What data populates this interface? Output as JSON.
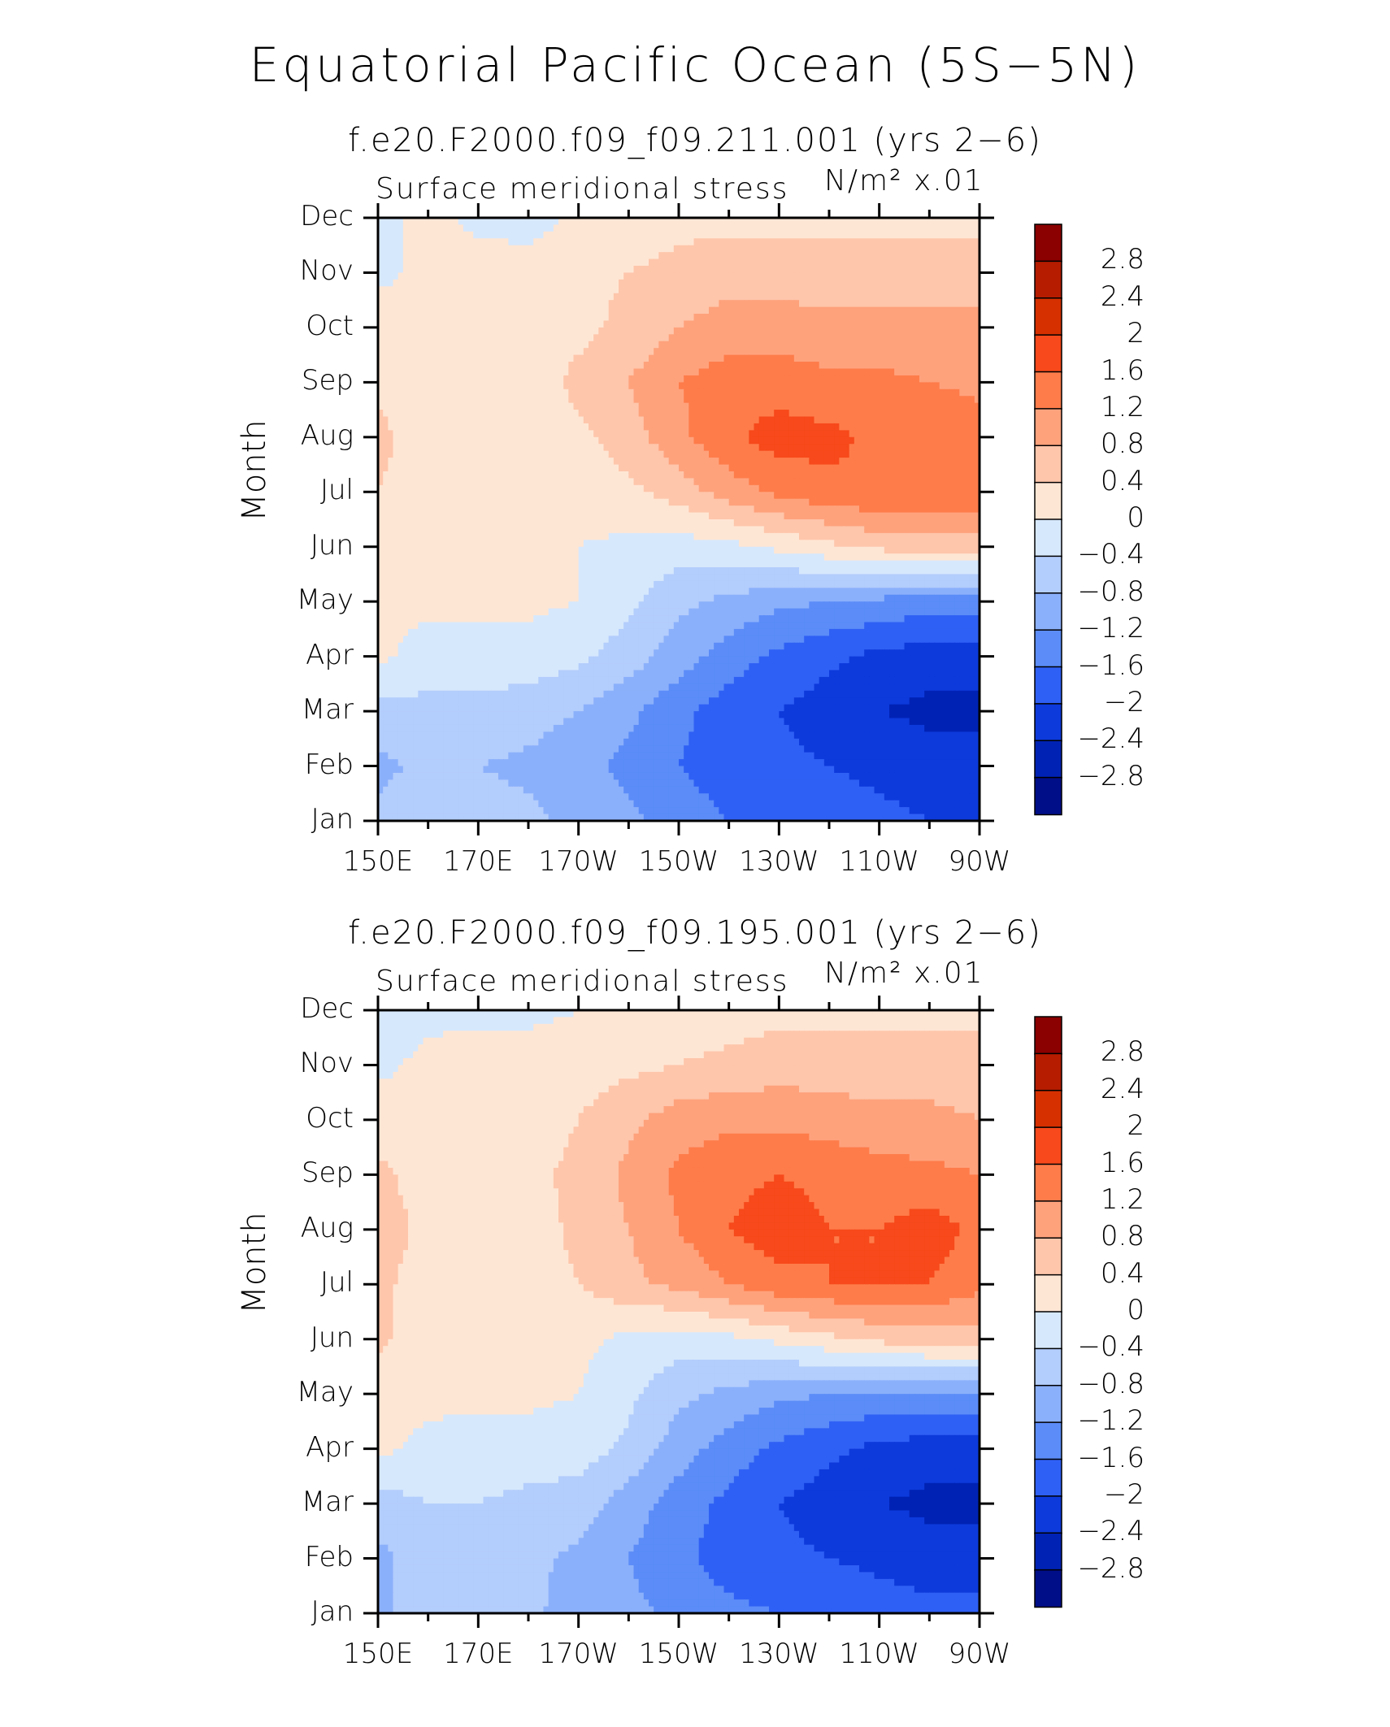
{
  "chart_data": {
    "type": "heatmap",
    "title": "Equatorial Pacific Ocean (5S−5N)",
    "panels": [
      {
        "case": "f.e20.F2000.f09_f09.211.001 (yrs 2−6)",
        "variable": "Surface meridional stress",
        "units": "N/m² x.01",
        "ylabel": "Month",
        "months": [
          "Jan",
          "Feb",
          "Mar",
          "Apr",
          "May",
          "Jun",
          "Jul",
          "Aug",
          "Sep",
          "Oct",
          "Nov",
          "Dec"
        ],
        "lon_ticks": [
          "150E",
          "170E",
          "170W",
          "150W",
          "130W",
          "110W",
          "90W"
        ],
        "lon_values": [
          150,
          170,
          190,
          210,
          230,
          250,
          270
        ],
        "grid_lon": [
          150,
          160,
          170,
          180,
          190,
          200,
          210,
          220,
          230,
          240,
          250,
          260,
          270
        ],
        "grid": [
          [
            -0.7,
            -0.6,
            -0.6,
            -0.7,
            -0.9,
            -1.1,
            -1.4,
            -1.6,
            -1.7,
            -1.8,
            -1.9,
            -2.0,
            -2.0
          ],
          [
            -0.9,
            -0.7,
            -0.8,
            -0.9,
            -1.1,
            -1.3,
            -1.6,
            -1.8,
            -1.9,
            -2.0,
            -2.1,
            -2.2,
            -2.2
          ],
          [
            -0.6,
            -0.5,
            -0.5,
            -0.6,
            -0.8,
            -1.1,
            -1.5,
            -1.8,
            -2.0,
            -2.2,
            -2.4,
            -2.5,
            -2.5
          ],
          [
            0.1,
            -0.2,
            -0.2,
            -0.2,
            -0.3,
            -0.6,
            -1.0,
            -1.4,
            -1.7,
            -1.9,
            -2.1,
            -2.2,
            -2.2
          ],
          [
            0.1,
            0.1,
            0.1,
            0.1,
            0.0,
            -0.3,
            -0.7,
            -0.9,
            -1.1,
            -1.2,
            -1.3,
            -1.4,
            -1.4
          ],
          [
            0.1,
            0.1,
            0.1,
            0.1,
            0.0,
            -0.1,
            -0.2,
            -0.1,
            0.1,
            0.3,
            0.5,
            0.6,
            0.6
          ],
          [
            0.4,
            0.2,
            0.2,
            0.2,
            0.2,
            0.3,
            0.6,
            1.0,
            1.3,
            1.5,
            1.6,
            1.6,
            1.5
          ],
          [
            0.5,
            0.2,
            0.2,
            0.2,
            0.3,
            0.6,
            1.1,
            1.5,
            1.8,
            1.7,
            1.5,
            1.5,
            1.4
          ],
          [
            0.3,
            0.2,
            0.2,
            0.2,
            0.5,
            0.8,
            1.2,
            1.4,
            1.4,
            1.3,
            1.3,
            1.2,
            1.1
          ],
          [
            0.2,
            0.2,
            0.2,
            0.2,
            0.3,
            0.5,
            0.8,
            1.0,
            1.0,
            0.9,
            0.9,
            0.9,
            0.9
          ],
          [
            -0.1,
            0.1,
            0.2,
            0.2,
            0.3,
            0.4,
            0.5,
            0.6,
            0.6,
            0.6,
            0.6,
            0.6,
            0.6
          ],
          [
            -0.1,
            0.1,
            -0.1,
            -0.2,
            0.1,
            0.2,
            0.3,
            0.3,
            0.3,
            0.3,
            0.3,
            0.3,
            0.3
          ]
        ]
      },
      {
        "case": "f.e20.F2000.f09_f09.195.001 (yrs 2−6)",
        "variable": "Surface meridional stress",
        "units": "N/m² x.01",
        "ylabel": "Month",
        "months": [
          "Jan",
          "Feb",
          "Mar",
          "Apr",
          "May",
          "Jun",
          "Jul",
          "Aug",
          "Sep",
          "Oct",
          "Nov",
          "Dec"
        ],
        "lon_ticks": [
          "150E",
          "170E",
          "170W",
          "150W",
          "130W",
          "110W",
          "90W"
        ],
        "lon_values": [
          150,
          170,
          190,
          210,
          230,
          250,
          270
        ],
        "grid_lon": [
          150,
          160,
          170,
          180,
          190,
          200,
          210,
          220,
          230,
          240,
          250,
          260,
          270
        ],
        "grid": [
          [
            -0.9,
            -0.6,
            -0.6,
            -0.7,
            -1.0,
            -1.1,
            -1.3,
            -1.5,
            -1.6,
            -1.7,
            -1.8,
            -1.9,
            -1.9
          ],
          [
            -0.9,
            -0.6,
            -0.6,
            -0.7,
            -0.9,
            -1.2,
            -1.5,
            -1.8,
            -1.9,
            -2.0,
            -2.1,
            -2.2,
            -2.2
          ],
          [
            -0.6,
            -0.4,
            -0.4,
            -0.5,
            -0.6,
            -1.0,
            -1.4,
            -1.7,
            -2.0,
            -2.2,
            -2.4,
            -2.5,
            -2.5
          ],
          [
            0.1,
            -0.1,
            -0.2,
            -0.2,
            -0.2,
            -0.5,
            -1.0,
            -1.4,
            -1.7,
            -1.9,
            -2.1,
            -2.2,
            -2.2
          ],
          [
            0.1,
            0.1,
            0.1,
            0.1,
            0.0,
            -0.3,
            -0.7,
            -0.9,
            -1.1,
            -1.2,
            -1.3,
            -1.3,
            -1.2
          ],
          [
            0.5,
            0.1,
            0.1,
            0.1,
            0.1,
            -0.1,
            -0.2,
            -0.1,
            0.1,
            0.3,
            0.5,
            0.6,
            0.6
          ],
          [
            0.5,
            0.2,
            0.2,
            0.2,
            0.4,
            0.7,
            0.9,
            1.2,
            1.5,
            1.6,
            1.6,
            1.6,
            1.3
          ],
          [
            0.6,
            0.3,
            0.2,
            0.2,
            0.5,
            0.8,
            1.2,
            1.6,
            1.8,
            1.6,
            1.6,
            1.8,
            1.5
          ],
          [
            0.5,
            0.2,
            0.2,
            0.3,
            0.5,
            0.9,
            1.3,
            1.5,
            1.6,
            1.5,
            1.4,
            1.3,
            1.2
          ],
          [
            0.2,
            0.2,
            0.2,
            0.2,
            0.4,
            0.7,
            1.0,
            1.1,
            1.1,
            1.0,
            0.9,
            0.9,
            0.8
          ],
          [
            -0.1,
            0.1,
            0.2,
            0.2,
            0.2,
            0.3,
            0.4,
            0.5,
            0.6,
            0.6,
            0.6,
            0.6,
            0.6
          ],
          [
            -0.2,
            -0.1,
            -0.1,
            -0.1,
            0.0,
            0.1,
            0.2,
            0.2,
            0.3,
            0.3,
            0.3,
            0.3,
            0.3
          ]
        ]
      }
    ],
    "colorbar": {
      "labels": [
        "2.8",
        "2.4",
        "2",
        "1.6",
        "1.2",
        "0.8",
        "0.4",
        "0",
        "−0.4",
        "−0.8",
        "−1.2",
        "−1.6",
        "−2",
        "−2.4",
        "−2.8"
      ],
      "levels": [
        2.8,
        2.4,
        2.0,
        1.6,
        1.2,
        0.8,
        0.4,
        0,
        -0.4,
        -0.8,
        -1.2,
        -1.6,
        -2.0,
        -2.4,
        -2.8
      ],
      "colors": [
        "#8b0000",
        "#b51c00",
        "#d63000",
        "#f7491b",
        "#fe7c4a",
        "#fea27c",
        "#fec6ab",
        "#fee6d4",
        "#d6e8fc",
        "#b3cdfc",
        "#8bb0fb",
        "#5b8cf8",
        "#2f60f5",
        "#0d3adb",
        "#0022b4",
        "#000e88"
      ]
    },
    "ylim": [
      0,
      11
    ],
    "xlim": [
      150,
      270
    ]
  }
}
